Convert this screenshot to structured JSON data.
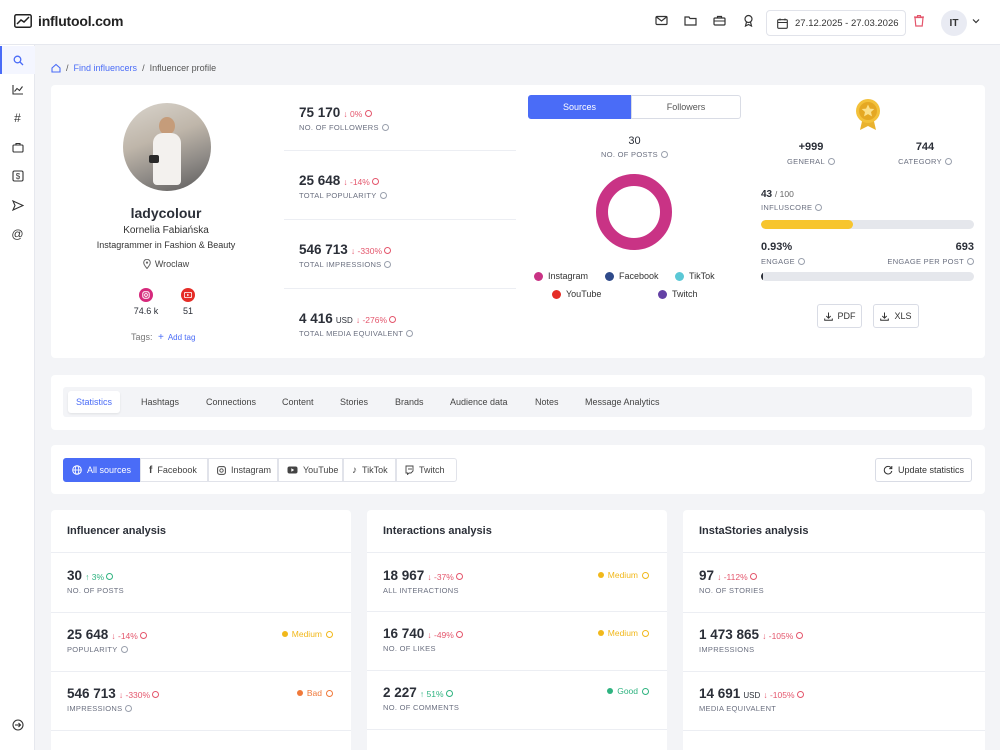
{
  "app": {
    "logo_text": "influtool.com"
  },
  "header": {
    "date_range": "27.12.2025 - 27.03.2026",
    "user_initials": "IT"
  },
  "breadcrumb": {
    "link": "Find influencers",
    "separator": "/",
    "current": "Influencer profile"
  },
  "profile": {
    "username": "ladycolour",
    "full_name": "Kornelia Fabiańska",
    "category_line": "Instagrammer in Fashion & Beauty",
    "location": "Wroclaw",
    "socials": [
      {
        "network": "instagram",
        "count": "74.6 k",
        "color": "#d6297c"
      },
      {
        "network": "youtube",
        "count": "51",
        "color": "#e52d27"
      }
    ],
    "tags_label": "Tags:",
    "add_tag_label": "Add tag"
  },
  "summary_stats": [
    {
      "value": "75 170",
      "unit": "",
      "change": "0%",
      "direction": "down",
      "label": "NO. OF FOLLOWERS"
    },
    {
      "value": "25 648",
      "unit": "",
      "change": "-14%",
      "direction": "down",
      "label": "TOTAL POPULARITY"
    },
    {
      "value": "546 713",
      "unit": "",
      "change": "-330%",
      "direction": "down",
      "label": "TOTAL IMPRESSIONS"
    },
    {
      "value": "4 416",
      "unit": "USD",
      "change": "-276%",
      "direction": "down",
      "label": "TOTAL MEDIA EQUIVALENT"
    }
  ],
  "sources_panel": {
    "switch": [
      "Sources",
      "Followers"
    ],
    "active": "Sources",
    "posts_value": "30",
    "posts_label": "NO. OF POSTS",
    "legend": [
      {
        "name": "Instagram",
        "color": "#c93385"
      },
      {
        "name": "Facebook",
        "color": "#2f4a8a"
      },
      {
        "name": "TikTok",
        "color": "#5bc8d6"
      },
      {
        "name": "YouTube",
        "color": "#e52d27"
      },
      {
        "name": "Twitch",
        "color": "#6441a5"
      }
    ],
    "donut_share": {
      "Instagram": 100
    }
  },
  "score_panel": {
    "general_value": "+999",
    "general_label": "GENERAL",
    "category_value": "744",
    "category_label": "CATEGORY",
    "influscore_value": "43",
    "influscore_max": "/ 100",
    "influscore_label": "INFLUSCORE",
    "influscore_fill_pct": 43,
    "influscore_color": "#f7c52e",
    "engage_value": "0.93%",
    "engage_label": "ENGAGE",
    "engage_per_post_value": "693",
    "engage_per_post_label": "ENGAGE PER POST",
    "engage_fill_pct": 1,
    "pdf_label": "PDF",
    "xls_label": "XLS"
  },
  "tabs": [
    "Statistics",
    "Hashtags",
    "Connections",
    "Content",
    "Stories",
    "Brands",
    "Audience data",
    "Notes",
    "Message Analytics"
  ],
  "active_tab": "Statistics",
  "source_filters": [
    "All sources",
    "Facebook",
    "Instagram",
    "YouTube",
    "TikTok",
    "Twitch"
  ],
  "active_source": "All sources",
  "update_statistics_label": "Update statistics",
  "panels": [
    {
      "title": "Influencer analysis",
      "rows": [
        {
          "value": "30",
          "unit": "",
          "change": "3%",
          "direction": "up",
          "label": "NO. OF POSTS",
          "badge": ""
        },
        {
          "value": "25 648",
          "unit": "",
          "change": "-14%",
          "direction": "down",
          "label": "POPULARITY",
          "badge": "Medium",
          "badge_color": "#f1b81b"
        },
        {
          "value": "546 713",
          "unit": "",
          "change": "-330%",
          "direction": "down",
          "label": "IMPRESSIONS",
          "badge": "Bad",
          "badge_color": "#f0793a"
        }
      ]
    },
    {
      "title": "Interactions analysis",
      "rows": [
        {
          "value": "18 967",
          "unit": "",
          "change": "-37%",
          "direction": "down",
          "label": "ALL INTERACTIONS",
          "badge": "Medium",
          "badge_color": "#f1b81b"
        },
        {
          "value": "16 740",
          "unit": "",
          "change": "-49%",
          "direction": "down",
          "label": "NO. OF LIKES",
          "badge": "Medium",
          "badge_color": "#f1b81b"
        },
        {
          "value": "2 227",
          "unit": "",
          "change": "51%",
          "direction": "up",
          "label": "NO. OF COMMENTS",
          "badge": "Good",
          "badge_color": "#2fb380"
        }
      ]
    },
    {
      "title": "InstaStories analysis",
      "rows": [
        {
          "value": "97",
          "unit": "",
          "change": "-112%",
          "direction": "down",
          "label": "NO. OF STORIES",
          "badge": ""
        },
        {
          "value": "1 473 865",
          "unit": "",
          "change": "-105%",
          "direction": "down",
          "label": "IMPRESSIONS",
          "badge": ""
        },
        {
          "value": "14 691",
          "unit": "USD",
          "change": "-105%",
          "direction": "down",
          "label": "MEDIA EQUIVALENT",
          "badge": ""
        }
      ]
    }
  ]
}
